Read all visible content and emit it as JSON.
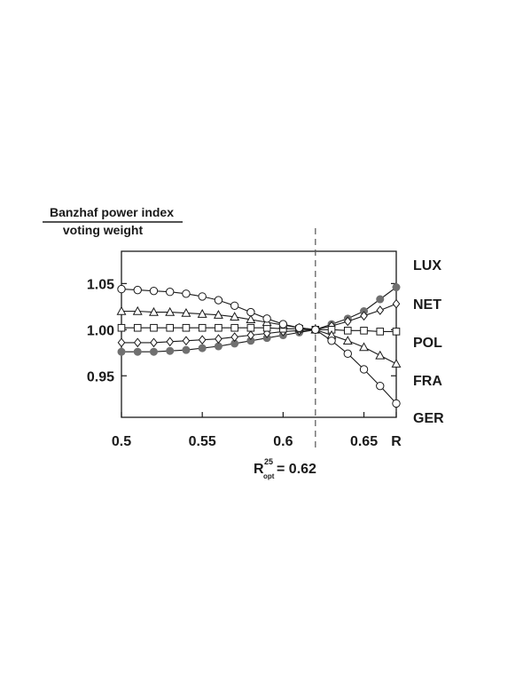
{
  "chart_data": {
    "type": "line",
    "ylabel_numerator": "Banzhaf power index",
    "ylabel_denominator": "voting weight",
    "xlim": [
      0.5,
      0.67
    ],
    "ylim": [
      0.905,
      1.085
    ],
    "x_ticks": [
      {
        "value": 0.5,
        "label": "0.5"
      },
      {
        "value": 0.55,
        "label": "0.55"
      },
      {
        "value": 0.6,
        "label": "0.6"
      },
      {
        "value": 0.65,
        "label": "0.65"
      },
      {
        "value": 0.67,
        "label": "R"
      }
    ],
    "y_ticks": [
      {
        "value": 0.95,
        "label": "0.95"
      },
      {
        "value": 1.0,
        "label": "1.00"
      },
      {
        "value": 1.05,
        "label": "1.05"
      }
    ],
    "reference_line": {
      "x": 0.62,
      "style": "dashed"
    },
    "annotation": {
      "base": "R",
      "superscript": "25",
      "subscript": "opt",
      "value_text": "= 0.62"
    },
    "x": [
      0.5,
      0.51,
      0.52,
      0.53,
      0.54,
      0.55,
      0.56,
      0.57,
      0.58,
      0.59,
      0.6,
      0.61,
      0.62,
      0.63,
      0.64,
      0.65,
      0.66,
      0.67
    ],
    "series": [
      {
        "name": "LUX",
        "marker": "filled-circle",
        "color": "#707070",
        "values": [
          0.976,
          0.976,
          0.976,
          0.977,
          0.978,
          0.98,
          0.982,
          0.985,
          0.988,
          0.991,
          0.994,
          0.997,
          1.0,
          1.006,
          1.012,
          1.02,
          1.033,
          1.046
        ]
      },
      {
        "name": "NET",
        "marker": "diamond",
        "color": "#1a1a1a",
        "values": [
          0.986,
          0.986,
          0.986,
          0.987,
          0.988,
          0.989,
          0.99,
          0.992,
          0.994,
          0.996,
          0.998,
          0.999,
          1.0,
          1.004,
          1.009,
          1.015,
          1.021,
          1.028
        ]
      },
      {
        "name": "POL",
        "marker": "square",
        "color": "#1a1a1a",
        "values": [
          1.002,
          1.002,
          1.002,
          1.002,
          1.002,
          1.002,
          1.002,
          1.002,
          1.002,
          1.002,
          1.001,
          1.001,
          1.0,
          1.0,
          0.999,
          0.999,
          0.998,
          0.998
        ]
      },
      {
        "name": "FRA",
        "marker": "triangle",
        "color": "#1a1a1a",
        "values": [
          1.02,
          1.02,
          1.019,
          1.019,
          1.018,
          1.017,
          1.016,
          1.014,
          1.011,
          1.008,
          1.005,
          1.002,
          1.0,
          0.994,
          0.988,
          0.981,
          0.972,
          0.963
        ]
      },
      {
        "name": "GER",
        "marker": "circle",
        "color": "#1a1a1a",
        "values": [
          1.044,
          1.043,
          1.042,
          1.041,
          1.039,
          1.036,
          1.032,
          1.026,
          1.019,
          1.012,
          1.006,
          1.002,
          1.0,
          0.988,
          0.974,
          0.957,
          0.939,
          0.92
        ]
      }
    ]
  }
}
